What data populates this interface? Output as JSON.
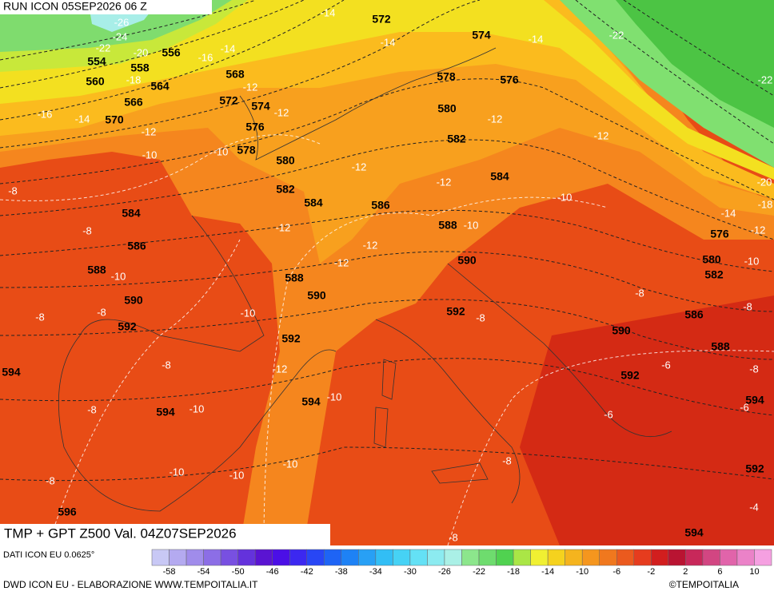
{
  "header": {
    "run": "RUN ICON 05SEP2026 06 Z",
    "product": "TMP + GPT Z500 Val. 04Z07SEP2026"
  },
  "footer": {
    "source": "DATI ICON EU 0.0625°",
    "credit": "DWD ICON EU - ELABORAZIONE WWW.TEMPOITALIA.IT",
    "copyright": "©TEMPOITALIA"
  },
  "colorbar": {
    "colors": [
      "#c8c8f5",
      "#b4aaf0",
      "#a08ceb",
      "#8c6ee6",
      "#7850e1",
      "#6432dc",
      "#5a14d2",
      "#4b0fe6",
      "#3c28f0",
      "#2846f5",
      "#1e64f5",
      "#1e82f5",
      "#28a0f5",
      "#32bef5",
      "#46d2f5",
      "#64e1f5",
      "#8cebf0",
      "#aaf0e6",
      "#8ce68c",
      "#6edc6e",
      "#50d250",
      "#aae646",
      "#f0f032",
      "#f5d21e",
      "#f5b41e",
      "#f5961e",
      "#f0781e",
      "#eb5a1e",
      "#e63c1e",
      "#d21e1e",
      "#b91432",
      "#c8285a",
      "#d24682",
      "#e164aa",
      "#eb82c8",
      "#f5a0e1"
    ],
    "ticks": [
      -58,
      -54,
      -50,
      -46,
      -42,
      -38,
      -34,
      -30,
      -26,
      -22,
      -18,
      -14,
      -10,
      -6,
      -2,
      2,
      6,
      10
    ]
  },
  "map": {
    "height_labels": [
      572,
      574,
      578,
      576,
      580,
      582,
      584,
      586,
      588,
      590,
      592,
      590,
      592,
      588,
      586,
      582,
      580,
      576,
      594,
      592,
      594,
      554,
      558,
      556,
      560,
      564,
      566,
      570,
      568,
      572,
      574,
      576,
      578,
      580,
      582,
      584,
      584,
      586,
      588,
      590,
      592,
      592,
      588,
      590,
      594,
      594,
      594,
      596
    ],
    "temperature_labels": [
      -26,
      -24,
      -22,
      -20,
      -18,
      -16,
      -14,
      -16,
      -14,
      -12,
      -10,
      -10,
      -12,
      -12,
      -14,
      -14,
      -14,
      -22,
      -22,
      -12,
      -12,
      -12,
      -12,
      -10,
      -12,
      -12,
      -12,
      -10,
      -20,
      -18,
      -14,
      -12,
      -10,
      -8,
      -8,
      -8,
      -6,
      -8,
      -6,
      -6,
      -4,
      -8,
      -8,
      -10,
      -12,
      -10,
      -10,
      -10,
      -10,
      -10,
      -8,
      -8,
      -10,
      -8,
      -8,
      -8,
      -8,
      -8
    ]
  }
}
